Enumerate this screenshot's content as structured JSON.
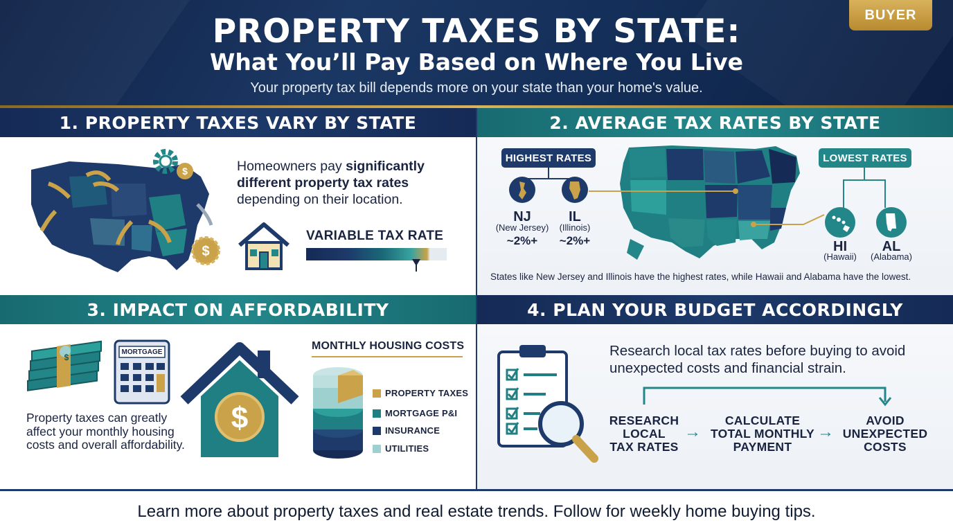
{
  "header": {
    "title": "PROPERTY TAXES BY STATE:",
    "subtitle": "What You’ll Pay Based on Where You Live",
    "tagline": "Your property tax bill depends more on your state than your home's value.",
    "badge": "BUYER"
  },
  "section1": {
    "heading": "1. PROPERTY TAXES VARY BY STATE",
    "text_prefix": "Homeowners pay ",
    "text_bold": "significantly different property tax rates",
    "text_suffix": " depending on their location.",
    "rate_label": "VARIABLE TAX RATE"
  },
  "section2": {
    "heading": "2. AVERAGE TAX RATES BY STATE",
    "highest_label": "HIGHEST RATES",
    "lowest_label": "LOWEST RATES",
    "highest": [
      {
        "code": "NJ",
        "name": "(New Jersey)",
        "rate": "~2%+"
      },
      {
        "code": "IL",
        "name": "(Illinois)",
        "rate": "~2%+"
      }
    ],
    "lowest": [
      {
        "code": "HI",
        "name": "(Hawaii)"
      },
      {
        "code": "AL",
        "name": "(Alabama)"
      }
    ],
    "caption": "States like New Jersey and Illinois have the highest rates, while Hawaii and Alabama have the lowest."
  },
  "section3": {
    "heading": "3. IMPACT ON AFFORDABILITY",
    "calculator_label": "MORTGAGE",
    "text": "Property taxes can greatly affect your monthly housing costs and overall affordability.",
    "costs_title": "MONTHLY HOUSING COSTS",
    "legend": [
      {
        "label": "PROPERTY TAXES",
        "color": "#c9a24a"
      },
      {
        "label": "MORTGAGE P&I",
        "color": "#1f7f82"
      },
      {
        "label": "INSURANCE",
        "color": "#1d3a6a"
      },
      {
        "label": "UTILITIES",
        "color": "#9fd0d0"
      }
    ]
  },
  "section4": {
    "heading": "4. PLAN YOUR BUDGET ACCORDINGLY",
    "text": "Research local tax rates before buying to avoid unexpected costs and financial strain.",
    "steps": [
      {
        "l1": "RESEARCH",
        "l2": "LOCAL",
        "l3": "TAX RATES"
      },
      {
        "l1": "CALCULATE",
        "l2": "TOTAL MONTHLY",
        "l3": "PAYMENT"
      },
      {
        "l1": "AVOID",
        "l2": "UNEXPECTED",
        "l3": "COSTS"
      }
    ]
  },
  "footer": {
    "text": "Learn more about property taxes and real estate trends. Follow for weekly home buying tips."
  },
  "colors": {
    "navy": "#1d3a6a",
    "teal": "#23878a",
    "gold": "#c9a24a"
  }
}
